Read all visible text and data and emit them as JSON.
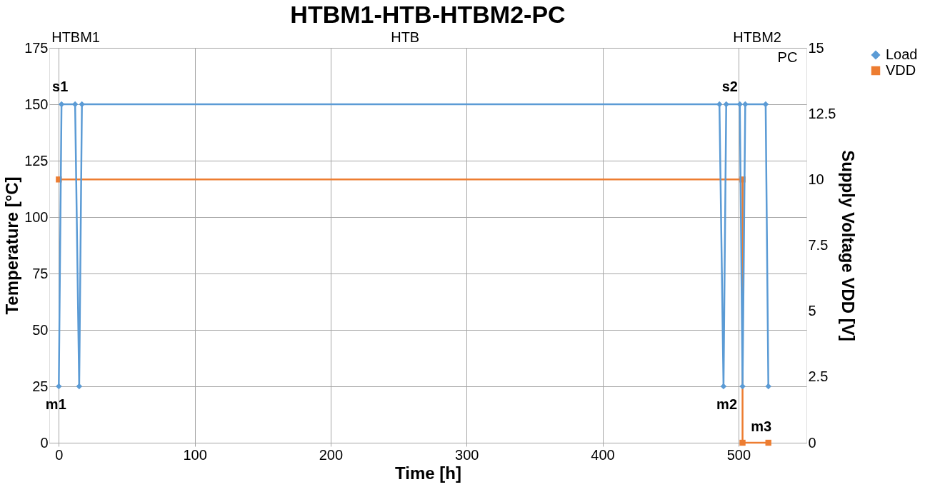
{
  "chart_data": {
    "type": "line",
    "title": "HTBM1-HTB-HTBM2-PC",
    "xlabel": "Time [h]",
    "ylabel": "Temperature [°C]",
    "y2label": "Supply Voltage VDD [V]",
    "xlim": [
      -7,
      550
    ],
    "xticks": [
      0,
      100,
      200,
      300,
      400,
      500
    ],
    "ylim": [
      0,
      175
    ],
    "yticks": [
      0,
      25,
      50,
      75,
      100,
      125,
      150,
      175
    ],
    "y2lim": [
      0,
      15
    ],
    "y2ticks": [
      0,
      2.5,
      5,
      7.5,
      10,
      12.5,
      15
    ],
    "grid": true,
    "legend": "right",
    "line_style": "solid",
    "series": [
      {
        "name": "Load",
        "color": "#5b9bd5",
        "marker": "diamond",
        "x": [
          0,
          2,
          12,
          15,
          17,
          486,
          489,
          491,
          501,
          503,
          505,
          520,
          522
        ],
        "values": [
          25,
          150,
          150,
          25,
          150,
          150,
          25,
          150,
          150,
          25,
          150,
          150,
          25
        ]
      },
      {
        "name": "VDD",
        "color": "#ed7d31",
        "marker": "square",
        "axis": "y2",
        "x": [
          0,
          503,
          503,
          522
        ],
        "values": [
          10,
          10,
          0,
          0
        ]
      }
    ],
    "annotations": [
      "HTBM1",
      "HTB",
      "HTBM2",
      "PC",
      {
        "text": "s1",
        "x": 2,
        "y": 150
      },
      {
        "text": "m1",
        "x": 0,
        "y": 25
      },
      {
        "text": "s2",
        "x": 501,
        "y": 150
      },
      {
        "text": "m2",
        "x": 503,
        "y": 25
      },
      {
        "text": "m3",
        "x": 522,
        "y": 0
      }
    ]
  }
}
